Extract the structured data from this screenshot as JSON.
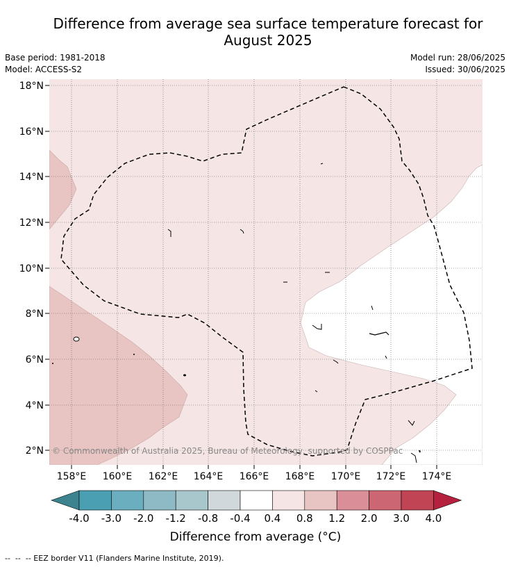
{
  "header": {
    "title_line1": "Difference from average sea surface temperature forecast for",
    "title_line2": "August 2025",
    "base_period": "Base period: 1981-2018",
    "model": "Model: ACCESS-S2",
    "model_run": "Model run: 28/06/2025",
    "issued": "Issued: 30/06/2025"
  },
  "map": {
    "credit": "© Commonwealth of Australia 2025, Bureau of Meteorology, supported by COSPPac",
    "lat_ticks": [
      "18°N",
      "16°N",
      "14°N",
      "12°N",
      "10°N",
      "8°N",
      "6°N",
      "4°N",
      "2°N"
    ],
    "lon_ticks": [
      "158°E",
      "160°E",
      "162°E",
      "164°E",
      "166°E",
      "168°E",
      "170°E",
      "172°E",
      "174°E"
    ],
    "border_label": "-- EEZ border V11 (Flanders Marine Institute, 2019)."
  },
  "colorbar": {
    "labels": [
      "-4.0",
      "-3.0",
      "-2.0",
      "-1.2",
      "-0.8",
      "-0.4",
      "0.4",
      "0.8",
      "1.2",
      "2.0",
      "3.0",
      "4.0"
    ],
    "colors": [
      "#3d838f",
      "#4a9fb2",
      "#6aaec0",
      "#8ebac6",
      "#a8c7cc",
      "#d1d8db",
      "#ffffff",
      "#f5e6e5",
      "#e8c5c2",
      "#d98e98",
      "#cc6672",
      "#c04454",
      "#b5203e"
    ],
    "title": "Difference from average (°C)"
  }
}
